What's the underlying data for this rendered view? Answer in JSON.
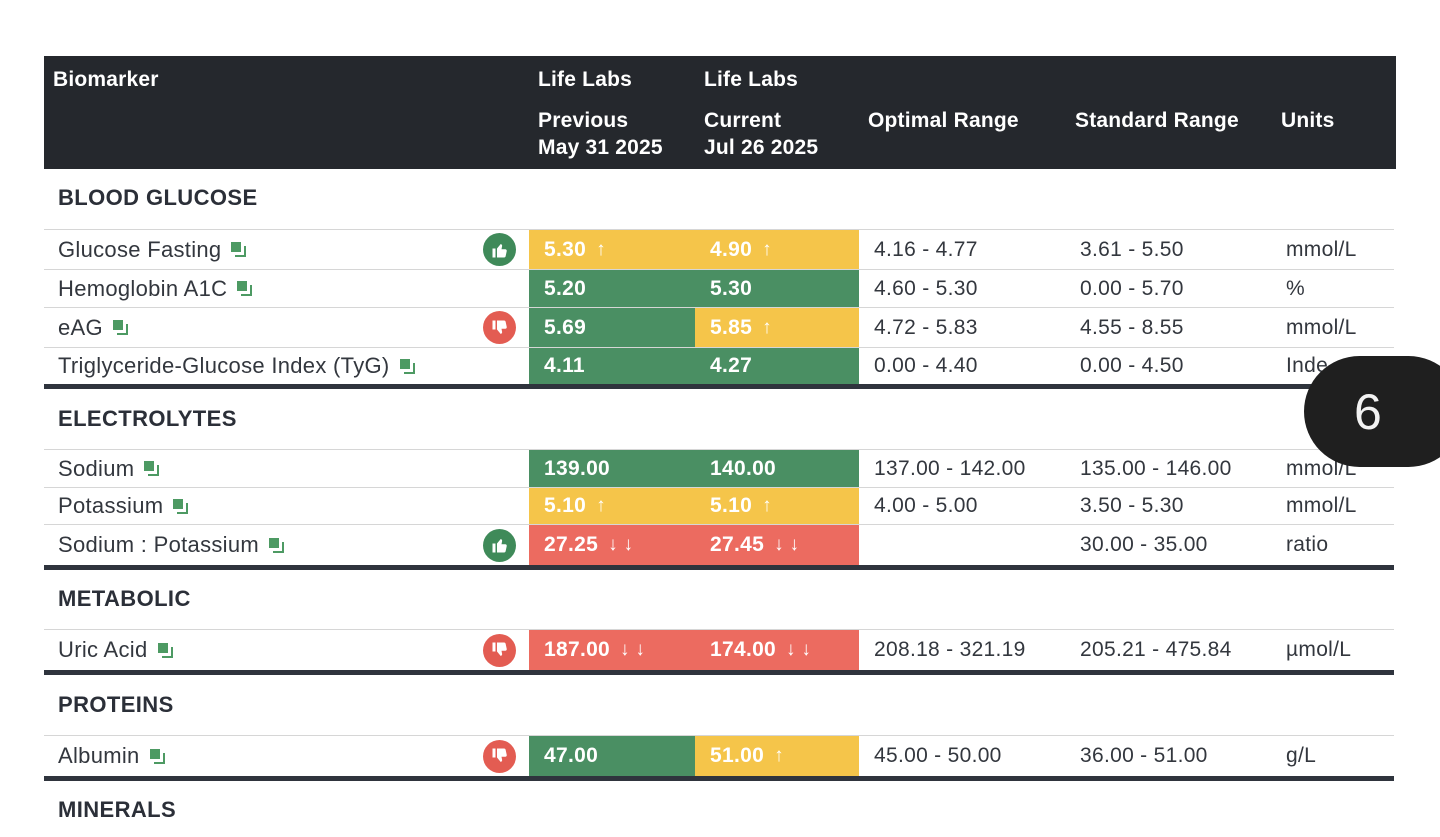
{
  "header": {
    "biomarker": "Biomarker",
    "prev_lab": "Life Labs",
    "prev_label": "Previous",
    "prev_date": "May 31 2025",
    "curr_lab": "Life Labs",
    "curr_label": "Current",
    "curr_date": "Jul 26 2025",
    "optimal": "Optimal Range",
    "standard": "Standard Range",
    "units": "Units"
  },
  "sections": {
    "blood_glucose": "BLOOD GLUCOSE",
    "electrolytes": "ELECTROLYTES",
    "metabolic": "METABOLIC",
    "proteins": "PROTEINS",
    "minerals": "MINERALS"
  },
  "rows": [
    {
      "name": "Glucose Fasting",
      "badge": "thumbs-up",
      "prev": "5.30",
      "prev_arrow": "↑",
      "prev_status": "yellow",
      "curr": "4.90",
      "curr_arrow": "↑",
      "curr_status": "yellow",
      "optimal": "4.16 - 4.77",
      "standard": "3.61 - 5.50",
      "units": "mmol/L"
    },
    {
      "name": "Hemoglobin A1C",
      "badge": "",
      "prev": "5.20",
      "prev_arrow": "",
      "prev_status": "green",
      "curr": "5.30",
      "curr_arrow": "",
      "curr_status": "green",
      "optimal": "4.60 - 5.30",
      "standard": "0.00 - 5.70",
      "units": "%"
    },
    {
      "name": "eAG",
      "badge": "thumbs-down",
      "prev": "5.69",
      "prev_arrow": "",
      "prev_status": "green",
      "curr": "5.85",
      "curr_arrow": "↑",
      "curr_status": "yellow",
      "optimal": "4.72 - 5.83",
      "standard": "4.55 - 8.55",
      "units": "mmol/L"
    },
    {
      "name": "Triglyceride-Glucose Index (TyG)",
      "badge": "",
      "prev": "4.11",
      "prev_arrow": "",
      "prev_status": "green",
      "curr": "4.27",
      "curr_arrow": "",
      "curr_status": "green",
      "optimal": "0.00 - 4.40",
      "standard": "0.00 - 4.50",
      "units": "Inde"
    },
    {
      "name": "Sodium",
      "badge": "",
      "prev": "139.00",
      "prev_arrow": "",
      "prev_status": "green",
      "curr": "140.00",
      "curr_arrow": "",
      "curr_status": "green",
      "optimal": "137.00 - 142.00",
      "standard": "135.00 - 146.00",
      "units": "mmol/L"
    },
    {
      "name": "Potassium",
      "badge": "",
      "prev": "5.10",
      "prev_arrow": "↑",
      "prev_status": "yellow",
      "curr": "5.10",
      "curr_arrow": "↑",
      "curr_status": "yellow",
      "optimal": "4.00 - 5.00",
      "standard": "3.50 - 5.30",
      "units": "mmol/L"
    },
    {
      "name": "Sodium : Potassium",
      "badge": "thumbs-up",
      "prev": "27.25",
      "prev_arrow": "↓ ↓",
      "prev_status": "red",
      "curr": "27.45",
      "curr_arrow": "↓ ↓",
      "curr_status": "red",
      "optimal": "",
      "standard": "30.00 - 35.00",
      "units": "ratio"
    },
    {
      "name": "Uric Acid",
      "badge": "thumbs-down",
      "prev": "187.00",
      "prev_arrow": "↓ ↓",
      "prev_status": "red",
      "curr": "174.00",
      "curr_arrow": "↓ ↓",
      "curr_status": "red",
      "optimal": "208.18 - 321.19",
      "standard": "205.21 - 475.84",
      "units": "µmol/L"
    },
    {
      "name": "Albumin",
      "badge": "thumbs-down",
      "prev": "47.00",
      "prev_arrow": "",
      "prev_status": "green",
      "curr": "51.00",
      "curr_arrow": "↑",
      "curr_status": "yellow",
      "optimal": "45.00 - 50.00",
      "standard": "36.00 - 51.00",
      "units": "g/L"
    }
  ],
  "overlay": {
    "page_number": "6"
  },
  "colors": {
    "green": "#4a8f63",
    "yellow": "#f5c54a",
    "red": "#ec6b60",
    "header_bg": "#25282d"
  }
}
